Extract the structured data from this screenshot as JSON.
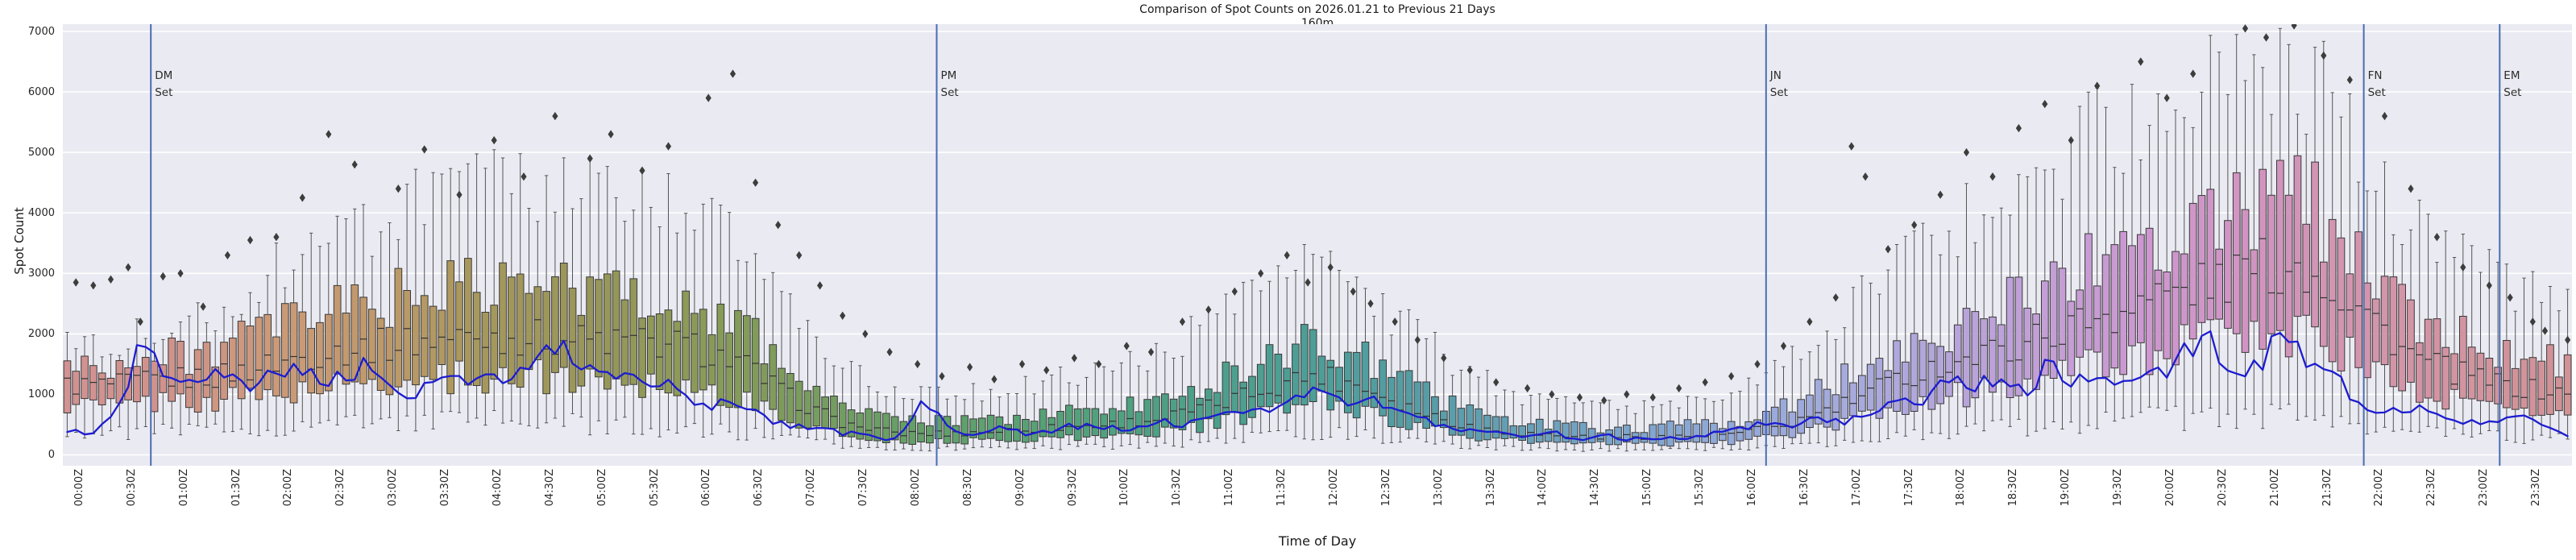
{
  "chart_data": {
    "type": "boxplot_with_line",
    "title": "Comparison of Spot Counts on 2026.01.21 to Previous 21 Days",
    "subtitle": "160m",
    "xlabel": "Time of Day",
    "ylabel": "Spot Count",
    "grid": true,
    "legend": "none",
    "ylim": [
      -180,
      7120
    ],
    "y_ticks": [
      0,
      1000,
      2000,
      3000,
      4000,
      5000,
      6000,
      7000
    ],
    "y_tick_labels": [
      "0",
      "1000",
      "2000",
      "3000",
      "4000",
      "5000",
      "6000",
      "7000"
    ],
    "x_tick_step_minutes": 30,
    "x_tick_labels": [
      "00:00Z",
      "00:30Z",
      "01:00Z",
      "01:30Z",
      "02:00Z",
      "02:30Z",
      "03:00Z",
      "03:30Z",
      "04:00Z",
      "04:30Z",
      "05:00Z",
      "05:30Z",
      "06:00Z",
      "06:30Z",
      "07:00Z",
      "07:30Z",
      "08:00Z",
      "08:30Z",
      "09:00Z",
      "09:30Z",
      "10:00Z",
      "10:30Z",
      "11:00Z",
      "11:30Z",
      "12:00Z",
      "12:30Z",
      "13:00Z",
      "13:30Z",
      "14:00Z",
      "14:30Z",
      "15:00Z",
      "15:30Z",
      "16:00Z",
      "16:30Z",
      "17:00Z",
      "17:30Z",
      "18:00Z",
      "18:30Z",
      "19:00Z",
      "19:30Z",
      "20:00Z",
      "20:30Z",
      "21:00Z",
      "21:30Z",
      "22:00Z",
      "22:30Z",
      "23:00Z",
      "23:30Z"
    ],
    "box_interval_minutes": 5,
    "box_count": 288,
    "anchor_step_minutes": 30,
    "box_anchors": {
      "median": [
        1150,
        1150,
        1250,
        1300,
        1500,
        1700,
        1800,
        1900,
        1950,
        1950,
        1900,
        1850,
        1800,
        1500,
        900,
        500,
        350,
        350,
        400,
        450,
        500,
        600,
        800,
        1100,
        1350,
        1100,
        700,
        450,
        350,
        300,
        300,
        300,
        350,
        500,
        800,
        1200,
        1500,
        1700,
        2000,
        2300,
        2600,
        2800,
        3100,
        3100,
        2400,
        1600,
        1300,
        1100,
        1000
      ],
      "q1": [
        850,
        800,
        900,
        900,
        1000,
        1100,
        1200,
        1250,
        1300,
        1300,
        1250,
        1200,
        1150,
        900,
        550,
        300,
        220,
        220,
        250,
        280,
        300,
        380,
        500,
        700,
        900,
        700,
        450,
        280,
        220,
        180,
        180,
        180,
        220,
        320,
        500,
        750,
        950,
        1100,
        1300,
        1500,
        1700,
        1850,
        2000,
        2000,
        1500,
        1000,
        850,
        750,
        700
      ],
      "q3": [
        1500,
        1450,
        1600,
        1750,
        2050,
        2350,
        2550,
        2700,
        2750,
        2750,
        2700,
        2650,
        2550,
        2100,
        1350,
        800,
        550,
        550,
        600,
        680,
        760,
        900,
        1200,
        1600,
        1900,
        1550,
        1050,
        700,
        520,
        450,
        450,
        480,
        550,
        800,
        1250,
        1750,
        2100,
        2400,
        2800,
        3200,
        3600,
        3900,
        4200,
        4150,
        3300,
        2300,
        1900,
        1650,
        1500
      ],
      "whisker_low": [
        400,
        350,
        400,
        400,
        450,
        500,
        550,
        550,
        550,
        550,
        500,
        450,
        420,
        350,
        250,
        150,
        100,
        100,
        120,
        130,
        140,
        170,
        220,
        300,
        380,
        300,
        200,
        130,
        100,
        80,
        80,
        80,
        100,
        140,
        220,
        300,
        380,
        430,
        500,
        550,
        600,
        620,
        650,
        640,
        520,
        380,
        320,
        280,
        260
      ],
      "whisker_high": [
        1950,
        1900,
        2100,
        2400,
        3000,
        3500,
        3900,
        4200,
        4400,
        4400,
        4300,
        4200,
        4100,
        3400,
        2300,
        1400,
        1000,
        1000,
        1100,
        1250,
        1400,
        1700,
        2200,
        2700,
        3100,
        2600,
        1900,
        1300,
        950,
        800,
        800,
        850,
        1000,
        1500,
        2300,
        3100,
        3700,
        4200,
        4800,
        5300,
        5700,
        6000,
        6400,
        6300,
        5100,
        3700,
        3100,
        2700,
        2500
      ]
    },
    "line_step_minutes": 15,
    "line_values": [
      450,
      300,
      600,
      1850,
      1300,
      1250,
      1400,
      1100,
      1300,
      1450,
      1250,
      1350,
      1500,
      900,
      1100,
      1300,
      1250,
      1300,
      1450,
      1900,
      1400,
      1300,
      1200,
      1250,
      950,
      800,
      850,
      600,
      500,
      400,
      350,
      300,
      280,
      900,
      400,
      350,
      450,
      350,
      400,
      500,
      450,
      400,
      550,
      500,
      650,
      800,
      700,
      900,
      1100,
      800,
      1000,
      700,
      600,
      450,
      400,
      350,
      300,
      350,
      250,
      300,
      250,
      300,
      280,
      350,
      400,
      500,
      450,
      600,
      550,
      700,
      900,
      800,
      1400,
      1100,
      1300,
      1000,
      1500,
      1200,
      1400,
      1100,
      1300,
      1600,
      1950,
      1300,
      1500,
      2000,
      1400,
      1300,
      700,
      750,
      800,
      600,
      500,
      550,
      600,
      450,
      350
    ],
    "outliers": [
      [
        5,
        2850
      ],
      [
        15,
        2800
      ],
      [
        25,
        2900
      ],
      [
        35,
        3100
      ],
      [
        42,
        2200
      ],
      [
        55,
        2950
      ],
      [
        65,
        3000
      ],
      [
        78,
        2450
      ],
      [
        92,
        3300
      ],
      [
        105,
        3550
      ],
      [
        120,
        3600
      ],
      [
        135,
        4250
      ],
      [
        150,
        5300
      ],
      [
        165,
        4800
      ],
      [
        190,
        4400
      ],
      [
        205,
        5050
      ],
      [
        225,
        4300
      ],
      [
        245,
        5200
      ],
      [
        262,
        4600
      ],
      [
        280,
        5600
      ],
      [
        300,
        4900
      ],
      [
        312,
        5300
      ],
      [
        330,
        4700
      ],
      [
        345,
        5100
      ],
      [
        368,
        5900
      ],
      [
        382,
        6300
      ],
      [
        395,
        4500
      ],
      [
        408,
        3800
      ],
      [
        420,
        3300
      ],
      [
        432,
        2800
      ],
      [
        445,
        2300
      ],
      [
        458,
        2000
      ],
      [
        472,
        1700
      ],
      [
        488,
        1500
      ],
      [
        502,
        1300
      ],
      [
        518,
        1450
      ],
      [
        532,
        1250
      ],
      [
        548,
        1500
      ],
      [
        562,
        1400
      ],
      [
        578,
        1600
      ],
      [
        592,
        1500
      ],
      [
        608,
        1800
      ],
      [
        622,
        1700
      ],
      [
        640,
        2200
      ],
      [
        655,
        2400
      ],
      [
        670,
        2700
      ],
      [
        685,
        3000
      ],
      [
        700,
        3300
      ],
      [
        712,
        2850
      ],
      [
        725,
        3100
      ],
      [
        738,
        2700
      ],
      [
        748,
        2500
      ],
      [
        762,
        2200
      ],
      [
        775,
        1900
      ],
      [
        790,
        1600
      ],
      [
        805,
        1400
      ],
      [
        820,
        1200
      ],
      [
        838,
        1100
      ],
      [
        852,
        1000
      ],
      [
        868,
        950
      ],
      [
        882,
        900
      ],
      [
        895,
        1000
      ],
      [
        910,
        950
      ],
      [
        925,
        1100
      ],
      [
        940,
        1200
      ],
      [
        955,
        1300
      ],
      [
        970,
        1500
      ],
      [
        985,
        1800
      ],
      [
        1000,
        2200
      ],
      [
        1015,
        2600
      ],
      [
        1024,
        5100
      ],
      [
        1032,
        4600
      ],
      [
        1045,
        3400
      ],
      [
        1060,
        3800
      ],
      [
        1075,
        4300
      ],
      [
        1090,
        5000
      ],
      [
        1105,
        4600
      ],
      [
        1120,
        5400
      ],
      [
        1135,
        5800
      ],
      [
        1150,
        5200
      ],
      [
        1165,
        6100
      ],
      [
        1190,
        6500
      ],
      [
        1205,
        5900
      ],
      [
        1220,
        6300
      ],
      [
        1250,
        7050
      ],
      [
        1262,
        6900
      ],
      [
        1278,
        7100
      ],
      [
        1295,
        6600
      ],
      [
        1310,
        6200
      ],
      [
        1330,
        5600
      ],
      [
        1345,
        4400
      ],
      [
        1360,
        3600
      ],
      [
        1375,
        3100
      ],
      [
        1390,
        2800
      ],
      [
        1402,
        2600
      ],
      [
        1415,
        2200
      ],
      [
        1422,
        2050
      ],
      [
        1435,
        1900
      ]
    ],
    "events": [
      {
        "name": "DM",
        "minute": 48
      },
      {
        "name": "PM",
        "minute": 499
      },
      {
        "name": "JN",
        "minute": 975
      },
      {
        "name": "FN",
        "minute": 1318
      },
      {
        "name": "EM",
        "minute": 1396
      }
    ],
    "event_label_suffix": "Set",
    "palette_hourly": [
      "#d19293",
      "#d0928c",
      "#cb9a79",
      "#c0996b",
      "#a6985c",
      "#99965a",
      "#8c9a58",
      "#7b9c5d",
      "#679f66",
      "#5aa171",
      "#50a17e",
      "#4d9f8b",
      "#4d9e97",
      "#569da6",
      "#67a0b8",
      "#7da5cd",
      "#93a9da",
      "#a5abdc",
      "#b5a5da",
      "#c49fd6",
      "#cd97cf",
      "#d194c0",
      "#d295ac",
      "#d2949f",
      "#d09295"
    ],
    "colors": {
      "figure_bg": "#ffffff",
      "plot_bg": "#eaeaf2",
      "grid": "#ffffff",
      "line": "#1c1cd1",
      "event_line": "#4a6cb3",
      "box_edge": "#3a3a3a",
      "whisker": "#555555",
      "median": "#333333",
      "outlier": "#3d3d3d",
      "tick_text": "#262626"
    },
    "jitter": {
      "median": 0.16,
      "q1": 0.22,
      "q3": 0.2,
      "lo": 0.35,
      "hi": 0.16,
      "line": 0.12
    }
  }
}
